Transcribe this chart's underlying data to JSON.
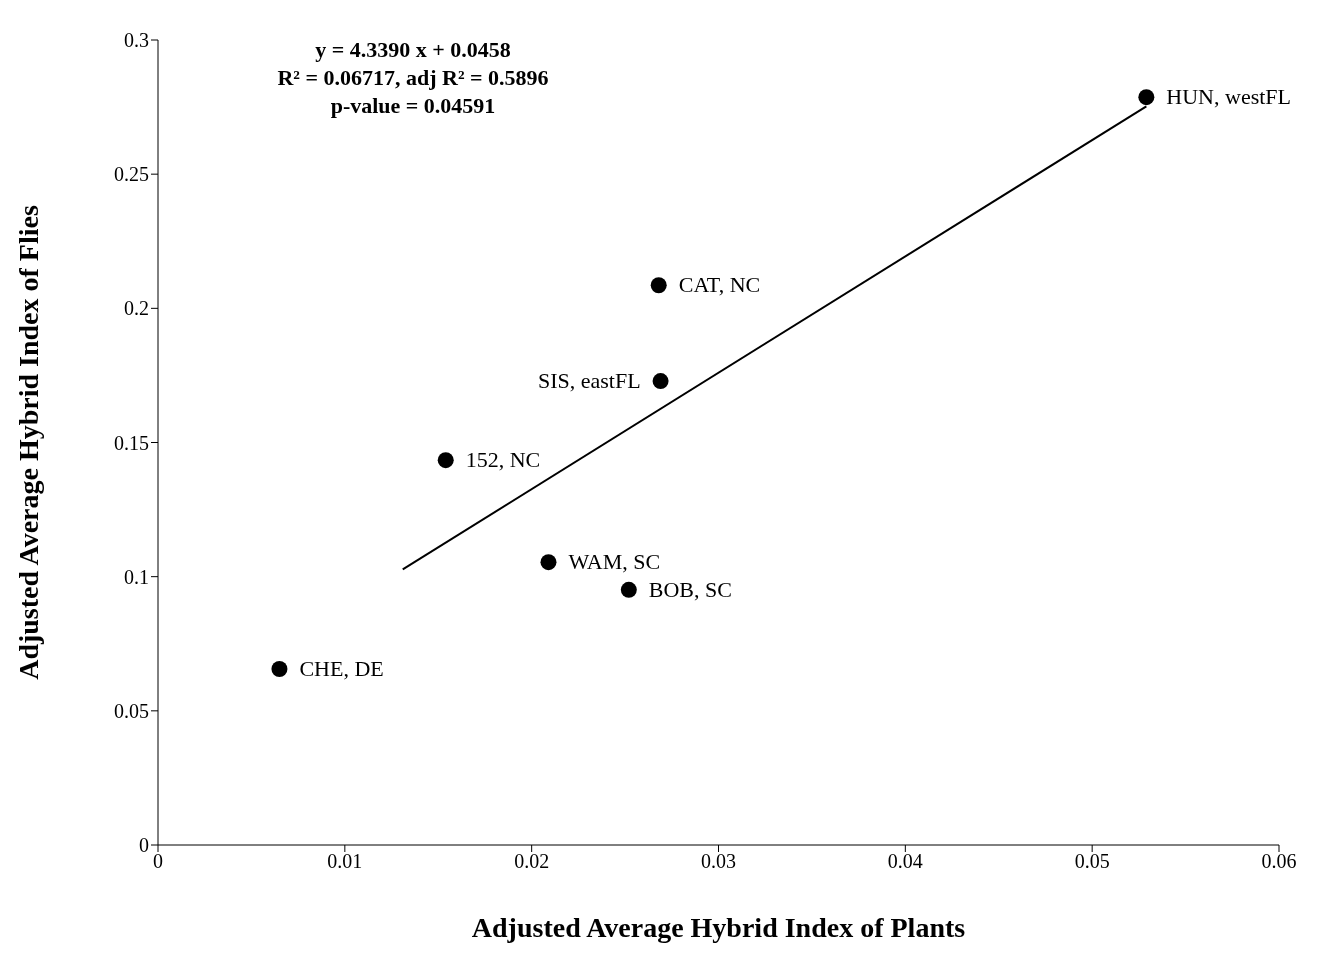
{
  "chart_data": {
    "type": "scatter",
    "xlabel": "Adjusted Average Hybrid Index of Plants",
    "ylabel": "Adjusted Average Hybrid Index of Flies",
    "xlim": [
      0,
      0.06
    ],
    "xticks": [
      0,
      0.01,
      0.02,
      0.03,
      0.04,
      0.05,
      0.06
    ],
    "ylim": [
      0,
      0.3
    ],
    "yticks": [
      0,
      0.05,
      0.1,
      0.15,
      0.2,
      0.25,
      0.3
    ],
    "grid": false,
    "legend": false,
    "series": [
      {
        "marker": "circle",
        "color": "#000000",
        "x": [
          0.0065,
          0.0154,
          0.0209,
          0.0252,
          0.0269,
          0.0268,
          0.0529
        ],
        "values": [
          0.0656,
          0.1434,
          0.1054,
          0.0951,
          0.1729,
          0.2086,
          0.2787
        ]
      },
      {
        "type": "line",
        "marker": "none",
        "color": "#000000",
        "x": [
          0.0131,
          0.0529
        ],
        "values": [
          0.1027,
          0.2753
        ]
      }
    ],
    "annotations": [
      "y = 4.3390 x + 0.0458",
      "R² = 0.06717, adj R² = 0.5896",
      "p-value = 0.04591",
      {
        "text": "CHE, DE",
        "x": 0.0065,
        "y": 0.0656
      },
      {
        "text": "152, NC",
        "x": 0.0154,
        "y": 0.1434
      },
      {
        "text": "WAM, SC",
        "x": 0.0209,
        "y": 0.1054
      },
      {
        "text": "BOB, SC",
        "x": 0.0252,
        "y": 0.0951
      },
      {
        "text": "SIS, eastFL",
        "x": 0.0269,
        "y": 0.1729
      },
      {
        "text": "CAT, NC",
        "x": 0.0268,
        "y": 0.2086
      },
      {
        "text": "HUN, westFL",
        "x": 0.0529,
        "y": 0.2787
      }
    ]
  }
}
